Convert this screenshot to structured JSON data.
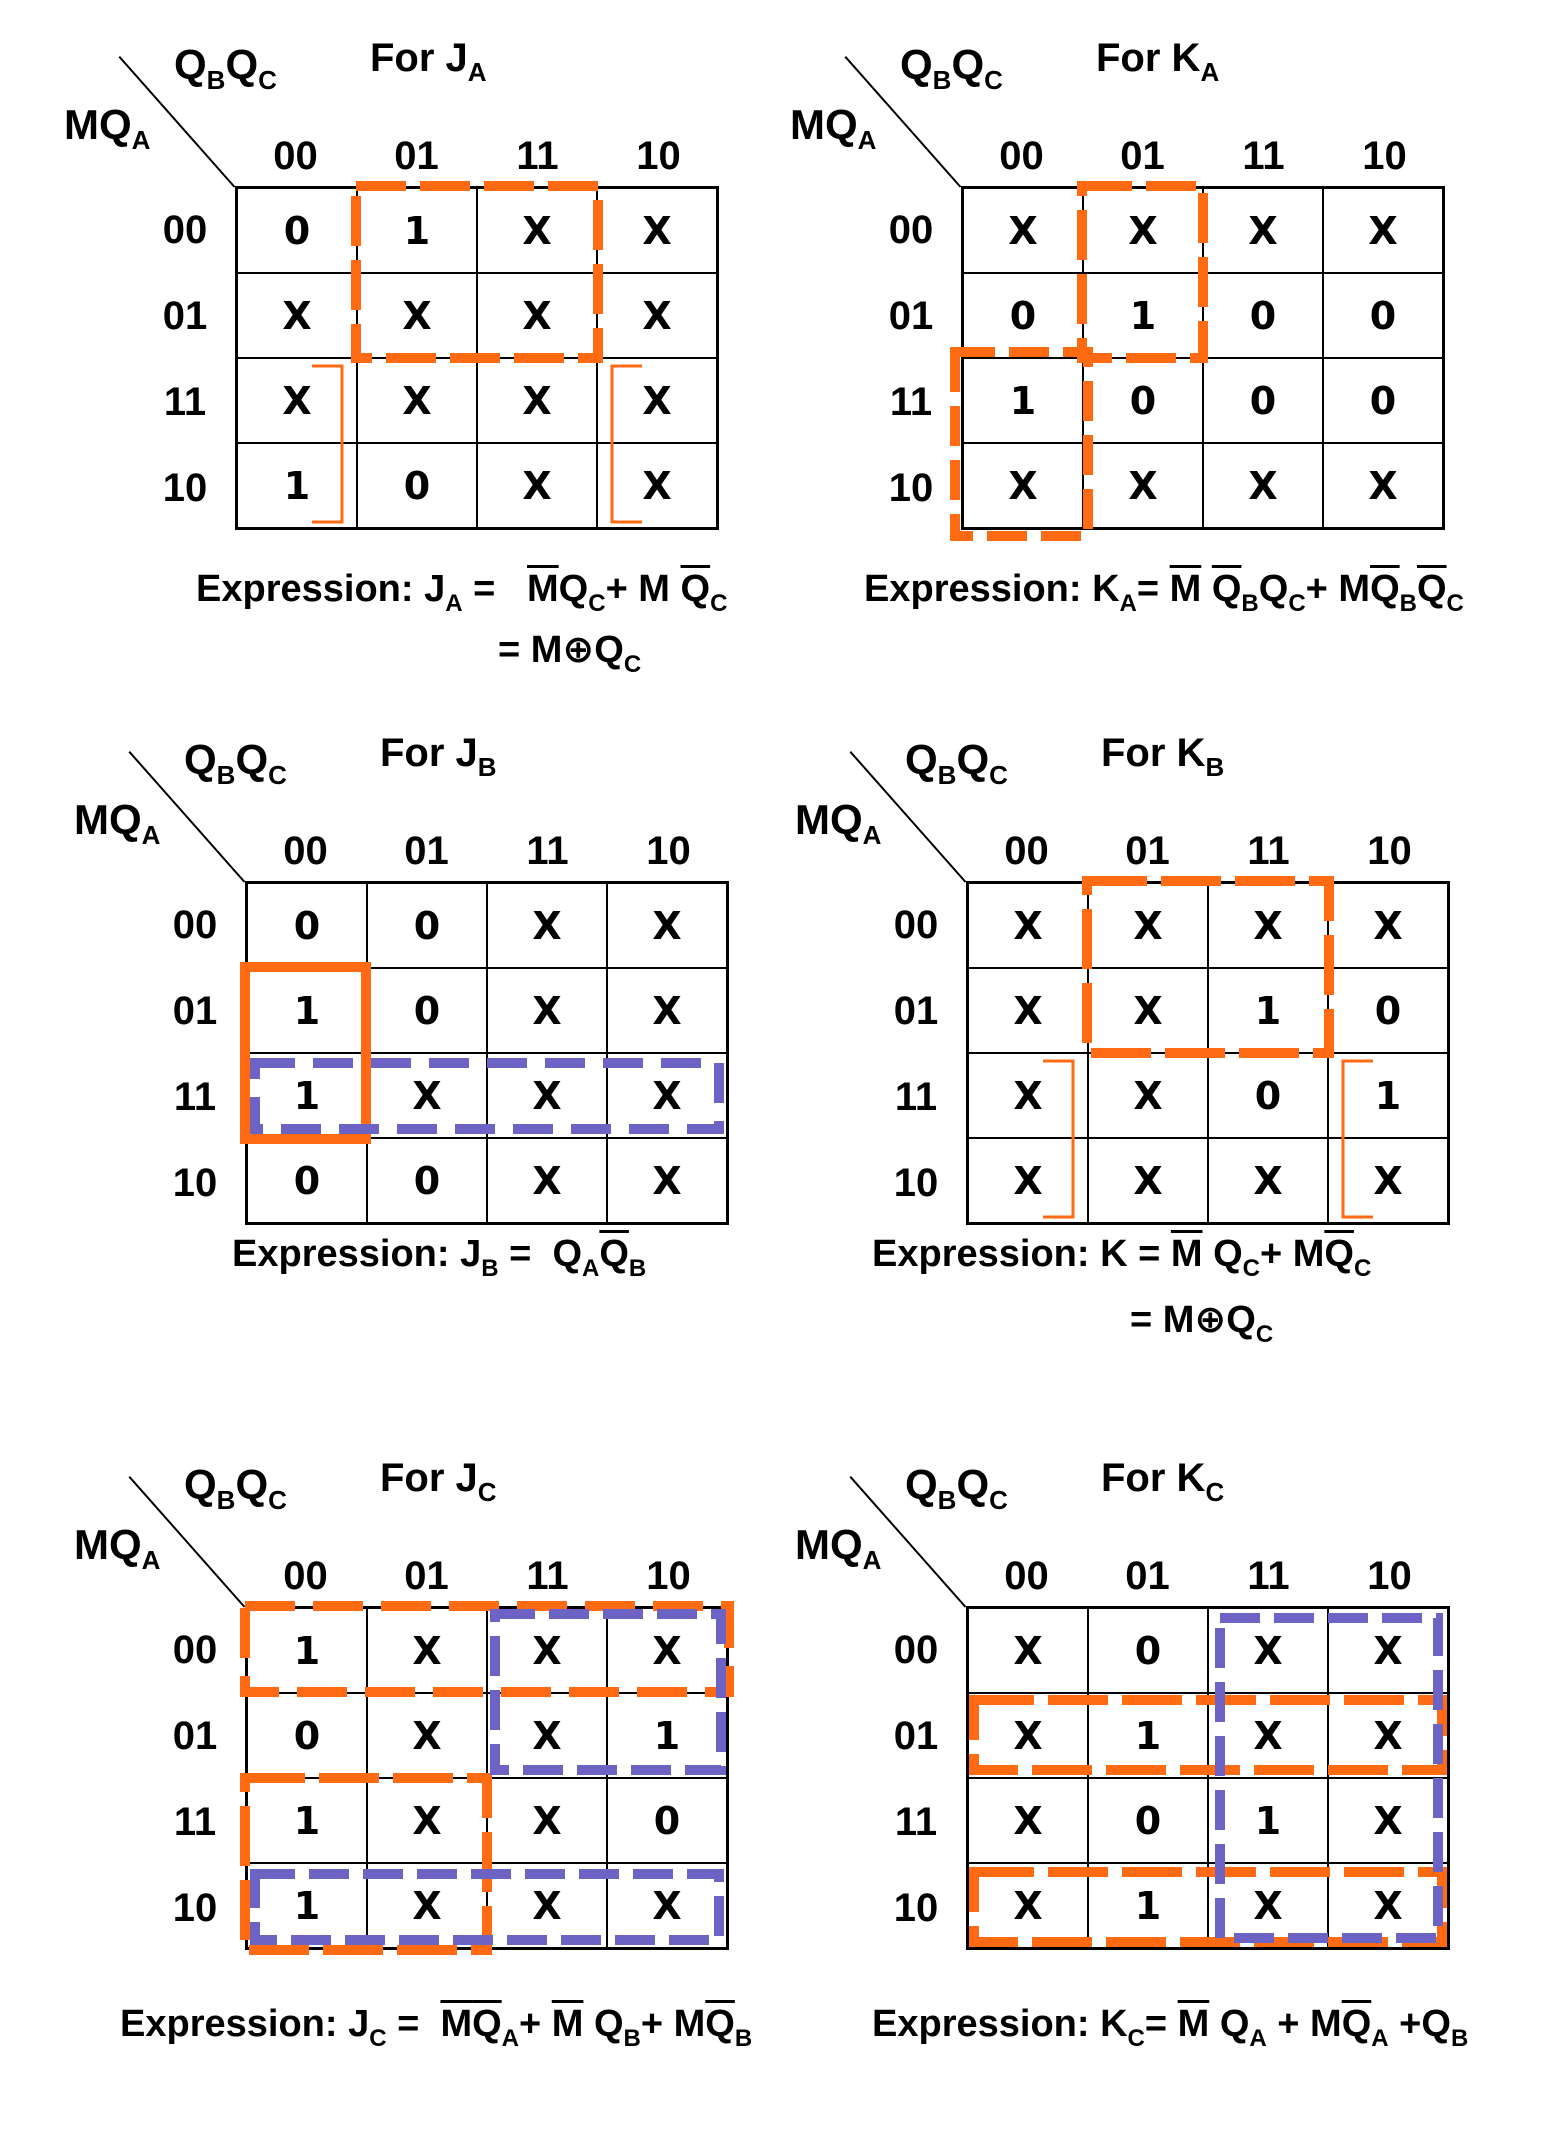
{
  "row_var_label": "MQ",
  "row_var_sub": "A",
  "col_var_label_q1": "Q",
  "col_var_sub1": "B",
  "col_var_label_q2": "Q",
  "col_var_sub2": "C",
  "col_headers": [
    "00",
    "01",
    "11",
    "10"
  ],
  "row_headers": [
    "00",
    "01",
    "11",
    "10"
  ],
  "colors": {
    "orange": "#ff6a13",
    "purple": "#6c63c4"
  },
  "maps": [
    {
      "id": "ja",
      "title_main": "For J",
      "title_sub": "A",
      "cells": [
        [
          "0",
          "1",
          "X",
          "X"
        ],
        [
          "X",
          "X",
          "X",
          "X"
        ],
        [
          "X",
          "X",
          "X",
          "X"
        ],
        [
          "1",
          "0",
          "X",
          "X"
        ]
      ]
    },
    {
      "id": "ka",
      "title_main": "For K",
      "title_sub": "A",
      "cells": [
        [
          "X",
          "X",
          "X",
          "X"
        ],
        [
          "0",
          "1",
          "0",
          "0"
        ],
        [
          "1",
          "0",
          "0",
          "0"
        ],
        [
          "X",
          "X",
          "X",
          "X"
        ]
      ]
    },
    {
      "id": "jb",
      "title_main": "For J",
      "title_sub": "B",
      "cells": [
        [
          "0",
          "0",
          "X",
          "X"
        ],
        [
          "1",
          "0",
          "X",
          "X"
        ],
        [
          "1",
          "X",
          "X",
          "X"
        ],
        [
          "0",
          "0",
          "X",
          "X"
        ]
      ]
    },
    {
      "id": "kb",
      "title_main": "For K",
      "title_sub": "B",
      "cells": [
        [
          "X",
          "X",
          "X",
          "X"
        ],
        [
          "X",
          "X",
          "1",
          "0"
        ],
        [
          "X",
          "X",
          "0",
          "1"
        ],
        [
          "X",
          "X",
          "X",
          "X"
        ]
      ]
    },
    {
      "id": "jc",
      "title_main": "For J",
      "title_sub": "C",
      "cells": [
        [
          "1",
          "X",
          "X",
          "X"
        ],
        [
          "0",
          "X",
          "X",
          "1"
        ],
        [
          "1",
          "X",
          "X",
          "0"
        ],
        [
          "1",
          "X",
          "X",
          "X"
        ]
      ]
    },
    {
      "id": "kc",
      "title_main": "For K",
      "title_sub": "C",
      "cells": [
        [
          "X",
          "0",
          "X",
          "X"
        ],
        [
          "X",
          "1",
          "X",
          "X"
        ],
        [
          "X",
          "0",
          "1",
          "X"
        ],
        [
          "X",
          "1",
          "X",
          "X"
        ]
      ]
    }
  ],
  "expressions": {
    "ja": {
      "prefix": "Expression: J",
      "sub": "A",
      "eq": " = ",
      "t1": "M",
      "t1s": "Q",
      "t1ss": "C",
      "plus1": "+ M ",
      "t2": "Q",
      "t2s": "C",
      "line2": "= M⊕Q",
      "line2s": "C"
    },
    "ka": {
      "prefix": "Expression: K",
      "sub": "A",
      "eq": "= ",
      "a1": "M",
      "a2": "Q",
      "a2s": "B",
      "a3": "Q",
      "a3s": "C",
      "plus1": "+ M",
      "b1": "Q",
      "b1s": "B",
      "b2": "Q",
      "b2s": "C"
    },
    "jb": {
      "prefix": "Expression: J",
      "sub": "B",
      "eq": " = ",
      "a1": "Q",
      "a1s": "A",
      "a2": "Q",
      "a2s": "B"
    },
    "kb": {
      "prefix": "Expression: K",
      "eq": " = ",
      "a1": "M",
      "a2": "Q",
      "a2s": "C",
      "plus1": "+ M",
      "b1": "Q",
      "b1s": "C",
      "line2": "= M⊕Q",
      "line2s": "C"
    },
    "jc": {
      "prefix": "Expression: J",
      "sub": "C",
      "eq": " = ",
      "a1": "M",
      "a2": "Q",
      "a2s": "A",
      "plus1": "+ ",
      "b1": "M",
      "b2": " Q",
      "b2s": "B",
      "plus2": "+ M",
      "c1": "Q",
      "c1s": "B"
    },
    "kc": {
      "prefix": "Expression: K",
      "sub": "C",
      "eq": "= ",
      "a1": "M",
      "a2": " Q",
      "a2s": "A",
      "plus1": " + M",
      "b1": "Q",
      "b1s": "A",
      "plus2": " +Q",
      "c1s": "B"
    }
  }
}
